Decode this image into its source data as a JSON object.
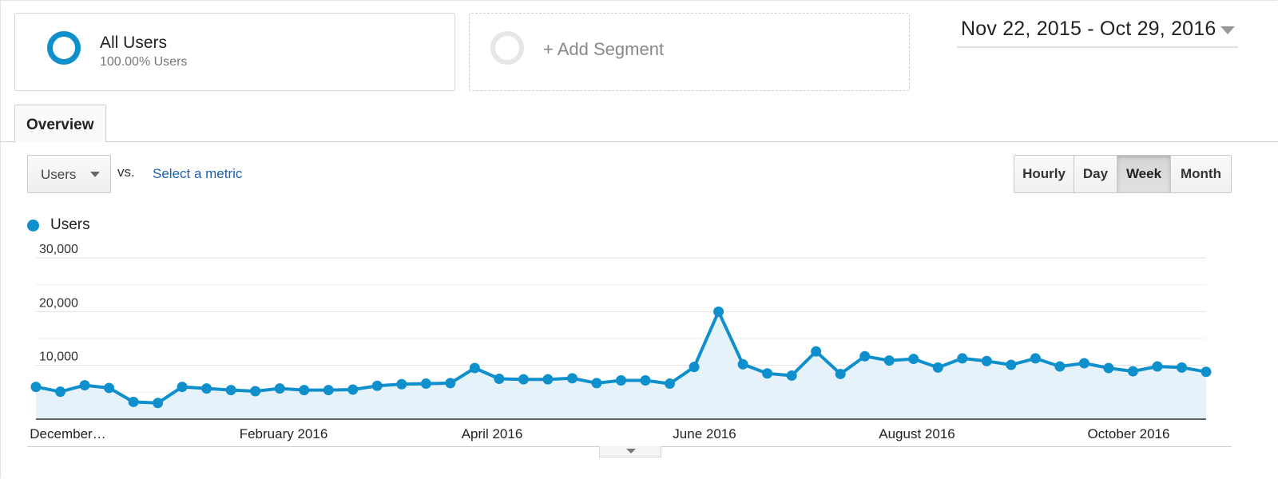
{
  "segments": {
    "all_users": {
      "name": "All Users",
      "description": "100.00% Users"
    },
    "add_segment": {
      "label": "+ Add Segment"
    }
  },
  "date_range": {
    "label": "Nov 22, 2015 - Oct 29, 2016"
  },
  "tabs": [
    {
      "label": "Overview"
    }
  ],
  "metric": {
    "selected": "Users",
    "vs_label": "vs.",
    "select_metric_label": "Select a metric"
  },
  "interval": {
    "buttons": [
      {
        "label": "Hourly"
      },
      {
        "label": "Day"
      },
      {
        "label": "Week",
        "active": true
      },
      {
        "label": "Month"
      }
    ]
  },
  "legend": {
    "label": "Users"
  },
  "colors": {
    "series": "#0f8fcc",
    "area_fill": "#e5f2f9",
    "gridline": "#eeeeee",
    "axis": "#333333"
  },
  "icons": {
    "all_users_segment": "ring-icon",
    "add_segment": "ring-outline-icon",
    "date_dropdown": "caret-down-icon",
    "metric_dropdown": "caret-down-icon",
    "expand_toggle": "caret-down-icon",
    "legend": "dot-icon"
  },
  "chart_data": {
    "type": "area",
    "series": [
      {
        "name": "Users",
        "values": [
          6000,
          5100,
          6300,
          5800,
          3200,
          3000,
          6000,
          5700,
          5400,
          5200,
          5700,
          5400,
          5400,
          5500,
          6200,
          6500,
          6600,
          6700,
          9500,
          7500,
          7400,
          7400,
          7600,
          6700,
          7200,
          7200,
          6600,
          9700,
          20000,
          10200,
          8500,
          8100,
          12600,
          8400,
          11700,
          10900,
          11200,
          9600,
          11300,
          10800,
          10100,
          11300,
          9800,
          10400,
          9500,
          8900,
          9800,
          9600,
          8800
        ]
      }
    ],
    "x_tick_labels": [
      "December…",
      "February 2016",
      "April 2016",
      "June 2016",
      "August 2016",
      "October 2016"
    ],
    "y_tick_labels": [
      "30,000",
      "20,000",
      "10,000"
    ],
    "y_ticks": [
      30000,
      20000,
      10000
    ],
    "ylim": [
      0,
      30000
    ],
    "grid": true,
    "legend": "top-left"
  }
}
